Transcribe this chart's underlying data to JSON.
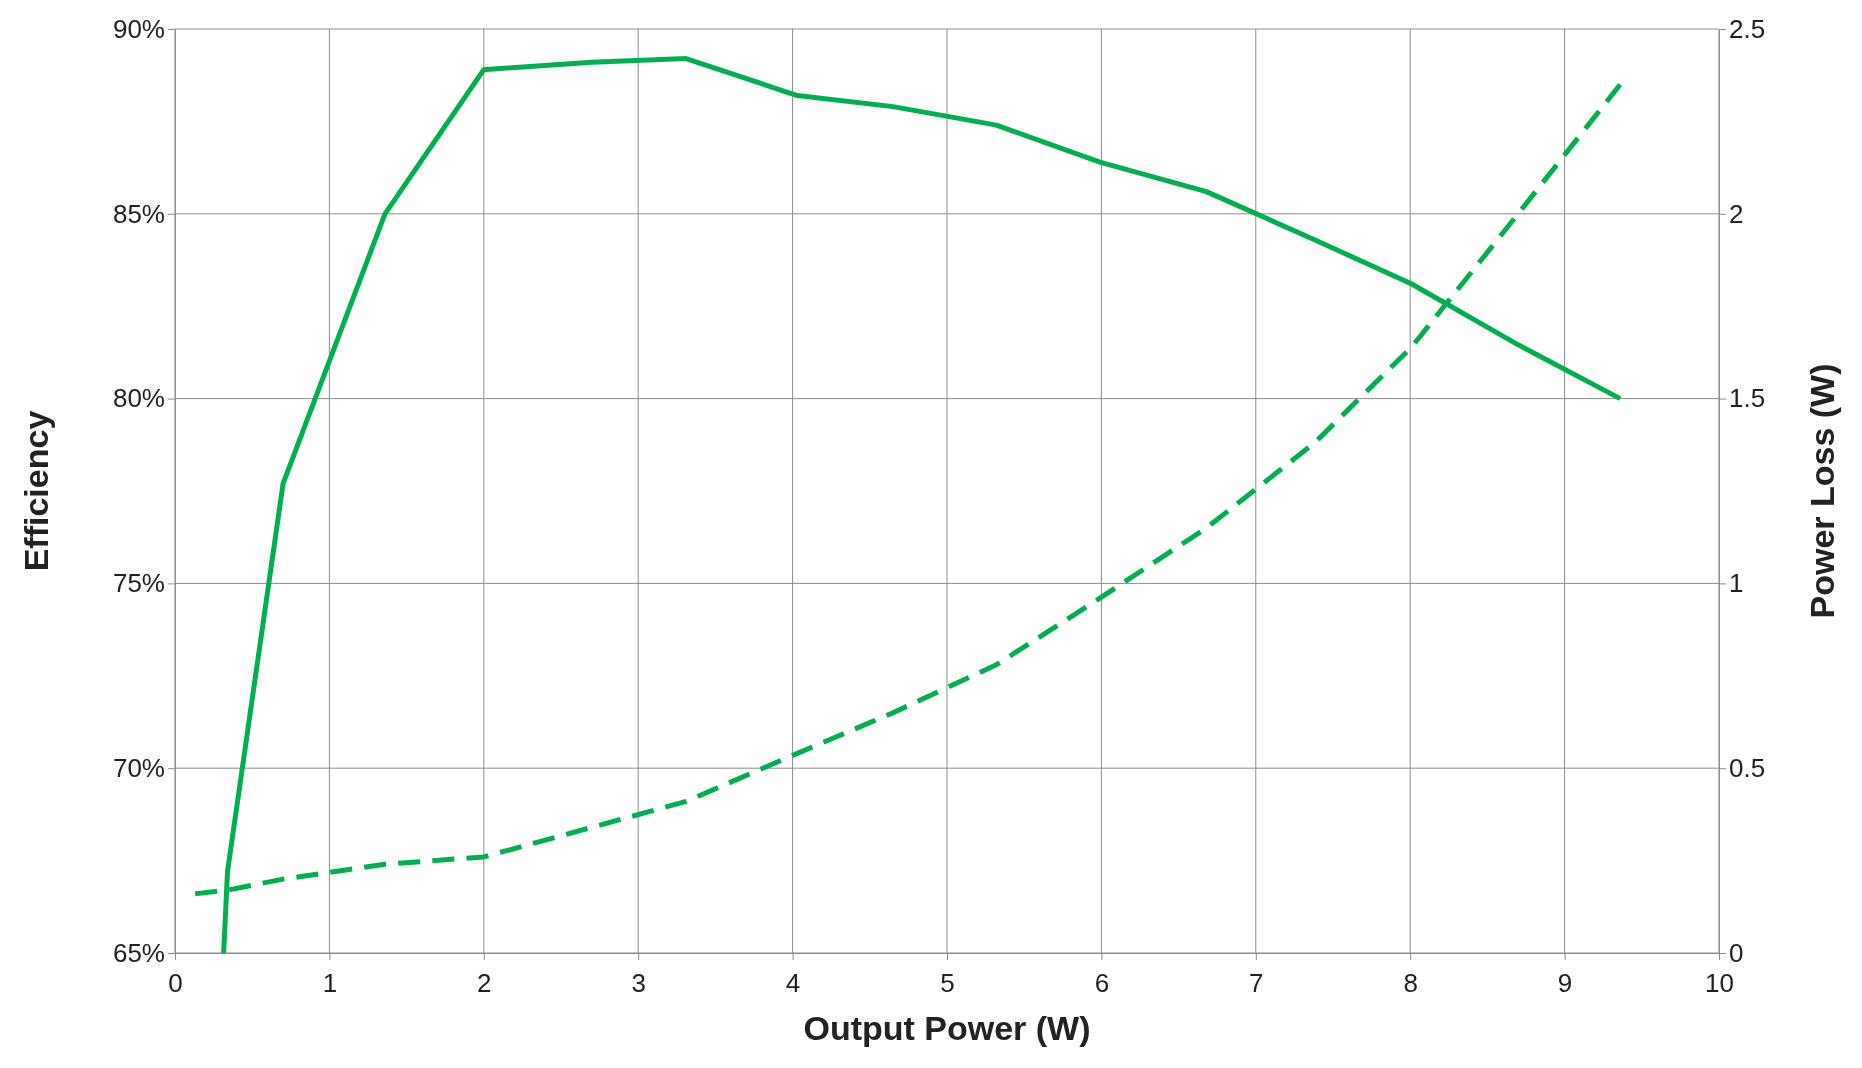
{
  "chart_data": {
    "type": "line",
    "xlabel": "Output  Power (W)",
    "ylabel": "Efficiency",
    "y2label": "Power Loss (W)",
    "xlim": [
      0,
      10
    ],
    "xticks": [
      0,
      1,
      2,
      3,
      4,
      5,
      6,
      7,
      8,
      9,
      10
    ],
    "ylim": [
      65,
      90
    ],
    "yticks": [
      {
        "value": 65,
        "label": "65%"
      },
      {
        "value": 70,
        "label": "70%"
      },
      {
        "value": 75,
        "label": "75%"
      },
      {
        "value": 80,
        "label": "80%"
      },
      {
        "value": 85,
        "label": "85%"
      },
      {
        "value": 90,
        "label": "90%"
      }
    ],
    "y2lim": [
      0,
      2.5
    ],
    "y2ticks": [
      0,
      0.5,
      1,
      1.5,
      2,
      2.5
    ],
    "grid": true,
    "series": [
      {
        "color": "#00b050",
        "line_style": "solid",
        "x": [
          0.315,
          0.34,
          0.7,
          1.36,
          2.0,
          2.7,
          3.31,
          4.03,
          4.65,
          5.32,
          5.99,
          6.68,
          7.38,
          8.01,
          8.68,
          9.36
        ],
        "values": [
          65,
          67.2,
          77.7,
          85.0,
          88.9,
          89.1,
          89.2,
          88.2,
          87.9,
          87.4,
          86.4,
          85.6,
          84.3,
          83.1,
          81.5,
          80.0
        ]
      },
      {
        "color": "#00b050",
        "line_style": "dashed",
        "axis": "y2",
        "x": [
          0.13,
          0.34,
          0.7,
          1.36,
          2.0,
          2.7,
          3.31,
          4.03,
          4.65,
          5.32,
          5.99,
          6.68,
          7.38,
          8.01,
          8.68,
          9.36
        ],
        "values": [
          0.16,
          0.17,
          0.2,
          0.24,
          0.26,
          0.34,
          0.41,
          0.54,
          0.65,
          0.78,
          0.96,
          1.15,
          1.38,
          1.64,
          1.99,
          2.35
        ]
      }
    ]
  }
}
